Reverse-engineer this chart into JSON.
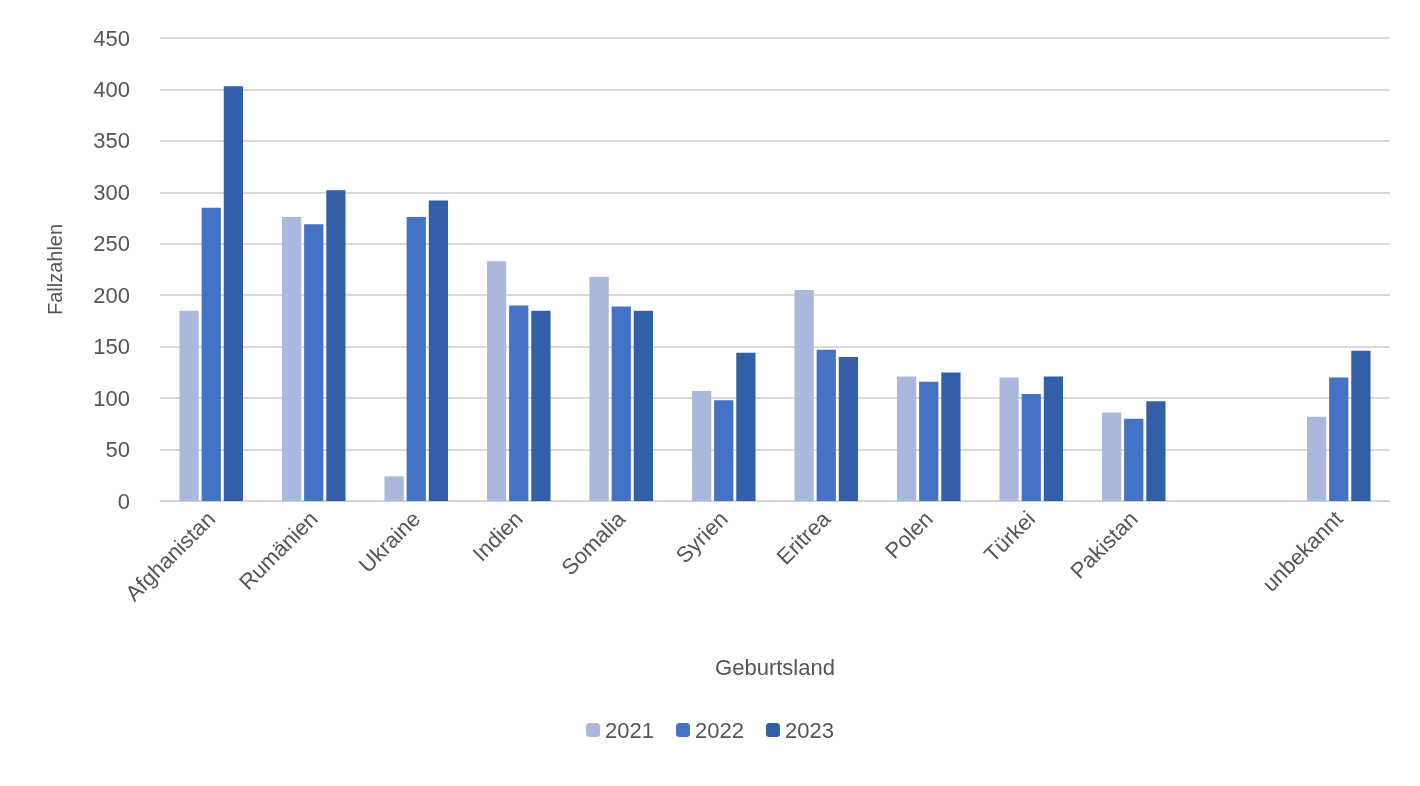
{
  "chart_data": {
    "type": "bar",
    "xlabel": "Geburtsland",
    "ylabel": "Fallzahlen",
    "categories": [
      "Afghanistan",
      "Rumänien",
      "Ukraine",
      "Indien",
      "Somalia",
      "Syrien",
      "Eritrea",
      "Polen",
      "Türkei",
      "Pakistan",
      null,
      "unbekannt"
    ],
    "series": [
      {
        "name": "2021",
        "color": "#a9b8dc",
        "values": [
          185,
          276,
          24,
          233,
          218,
          107,
          205,
          121,
          120,
          86,
          null,
          82
        ]
      },
      {
        "name": "2022",
        "color": "#4472c4",
        "values": [
          285,
          269,
          276,
          190,
          189,
          98,
          147,
          116,
          104,
          80,
          null,
          120
        ]
      },
      {
        "name": "2023",
        "color": "#335ea8",
        "values": [
          403,
          302,
          292,
          185,
          185,
          144,
          140,
          125,
          121,
          97,
          null,
          146
        ]
      }
    ],
    "ylim": [
      0,
      450
    ],
    "yticks": [
      0,
      50,
      100,
      150,
      200,
      250,
      300,
      350,
      400,
      450
    ],
    "grid": "y",
    "legend": "bottom"
  }
}
